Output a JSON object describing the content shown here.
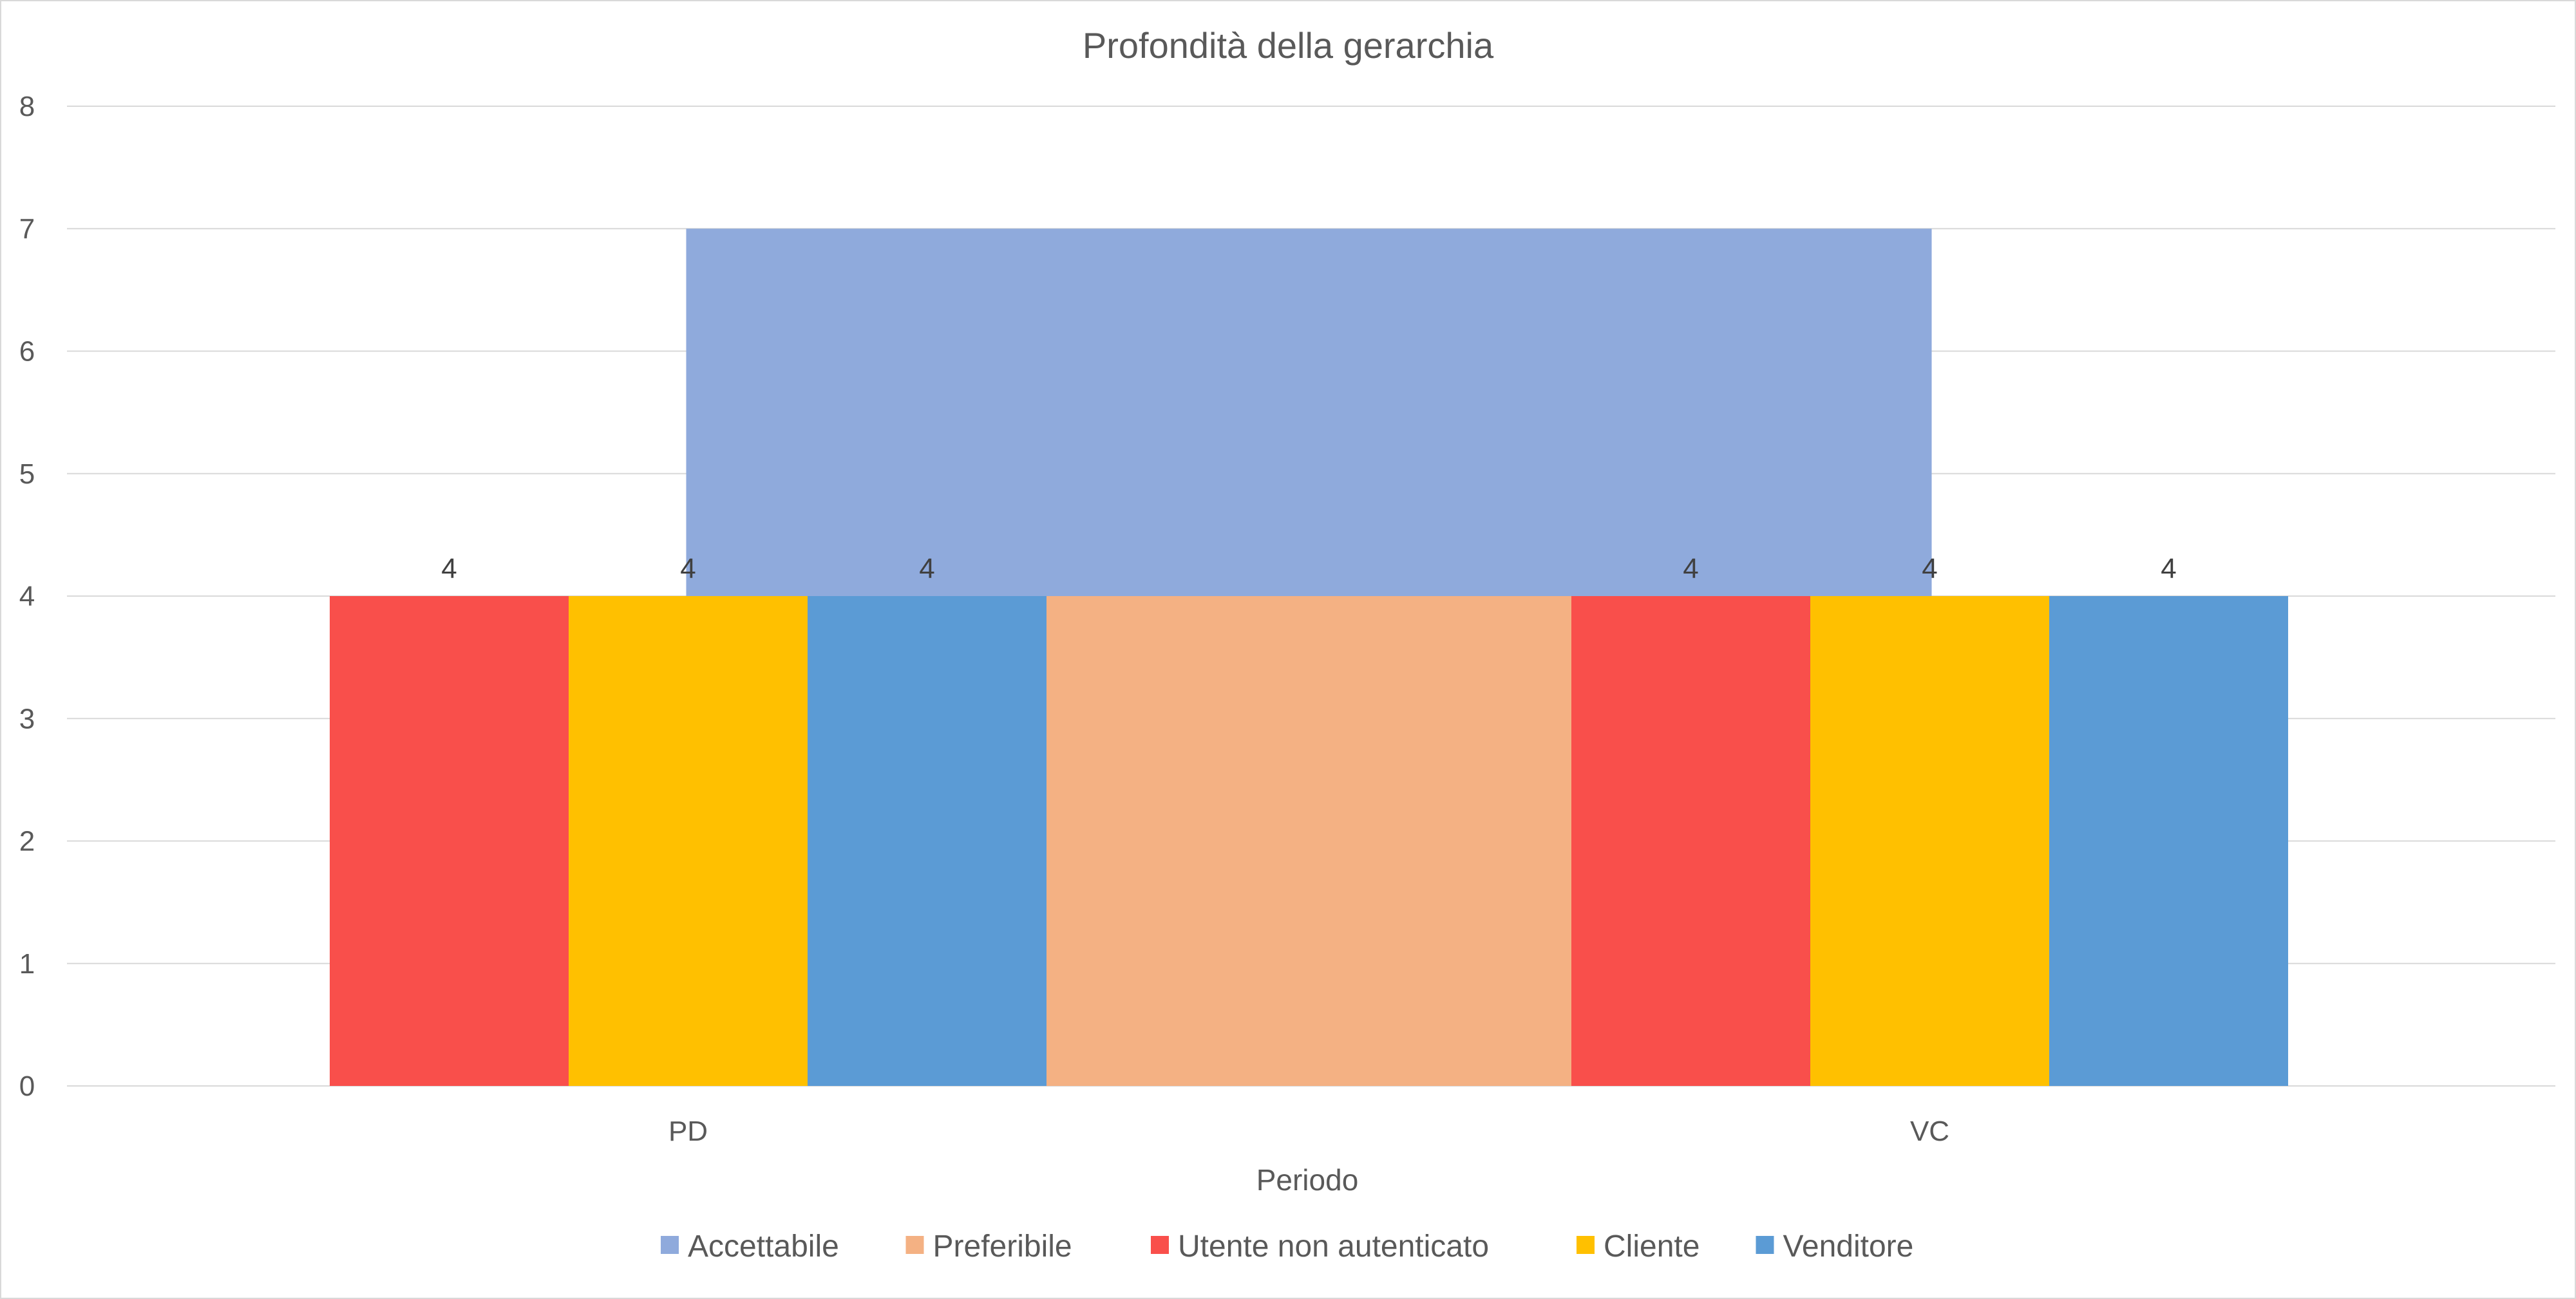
{
  "chart_data": {
    "type": "bar",
    "title": "Profondità della gerarchia",
    "xlabel": "Periodo",
    "ylabel": "",
    "ylim": [
      0,
      8
    ],
    "yticks": [
      0,
      1,
      2,
      3,
      4,
      5,
      6,
      7,
      8
    ],
    "grid": true,
    "legend_position": "bottom",
    "categories": [
      "PD",
      "VC"
    ],
    "background_series": [
      {
        "name": "Accettabile",
        "value": 7,
        "color": "#8FAADC",
        "span": "across both categories"
      },
      {
        "name": "Preferibile",
        "value": 4,
        "color": "#F4B183",
        "span": "between categories"
      }
    ],
    "series": [
      {
        "name": "Utente non autenticato",
        "values": [
          4,
          4
        ],
        "color": "#F94F4B"
      },
      {
        "name": "Cliente",
        "values": [
          4,
          4
        ],
        "color": "#FFC000"
      },
      {
        "name": "Venditore",
        "values": [
          4,
          4
        ],
        "color": "#5B9BD5"
      }
    ],
    "legend": [
      "Accettabile",
      "Preferibile",
      "Utente non autenticato",
      "Cliente",
      "Venditore"
    ]
  }
}
